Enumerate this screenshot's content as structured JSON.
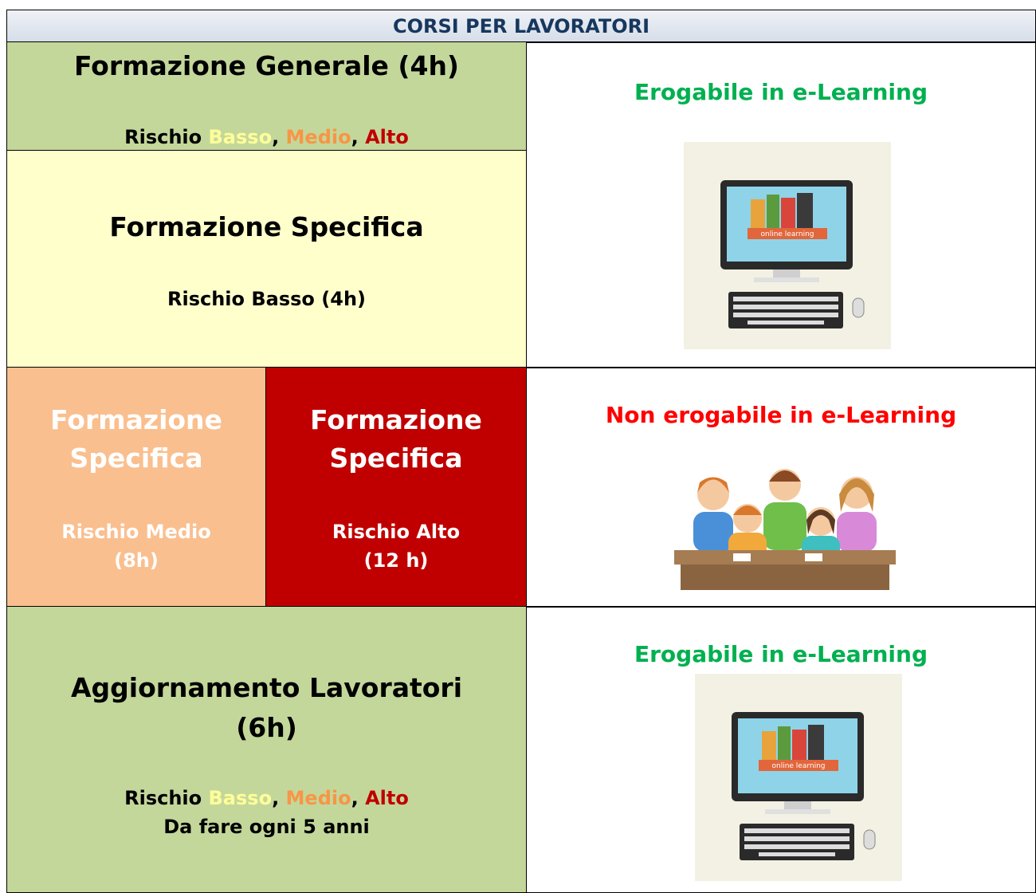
{
  "header": {
    "title": "CORSI PER LAVORATORI"
  },
  "general": {
    "title": "Formazione Generale (4h)",
    "risk": [
      "Rischio",
      "Basso",
      ",",
      "Medio",
      ",",
      "Alto"
    ]
  },
  "specific_low": {
    "title": "Formazione Specifica",
    "risk": "Rischio Basso (4h)"
  },
  "specific_medium": {
    "title": [
      "Formazione",
      "Specifica"
    ],
    "risk": [
      "Rischio Medio",
      "(8h)"
    ]
  },
  "specific_high": {
    "title": [
      "Formazione",
      "Specifica"
    ],
    "risk": [
      "Rischio Alto",
      "(12 h)"
    ]
  },
  "update": {
    "title": [
      "Aggiornamento Lavoratori",
      "(6h)"
    ],
    "risk": [
      "Rischio",
      "Basso",
      ",",
      "Medio",
      ",",
      "Alto"
    ],
    "note": "Da fare ogni 5 anni"
  },
  "delivery": {
    "elearning_1": "Erogabile in e-Learning",
    "classroom": "Non erogabile in e-Learning",
    "elearning_2": "Erogabile in e-Learning",
    "screen_label_1": "online learning",
    "screen_label_2": "online learning"
  }
}
